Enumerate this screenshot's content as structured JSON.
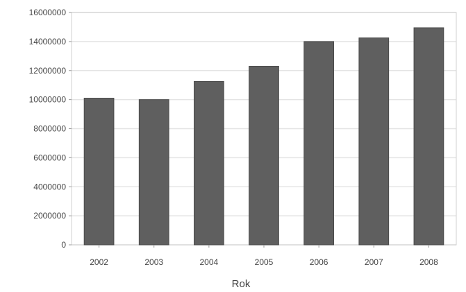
{
  "chart_data": {
    "type": "bar",
    "title": "",
    "xlabel": "Rok",
    "ylabel": "",
    "categories": [
      "2002",
      "2003",
      "2004",
      "2005",
      "2006",
      "2007",
      "2008"
    ],
    "values": [
      10100000,
      10000000,
      11250000,
      12300000,
      14000000,
      14250000,
      14950000
    ],
    "ylim": [
      0,
      16000000
    ],
    "yticks": [
      0,
      2000000,
      4000000,
      6000000,
      8000000,
      10000000,
      12000000,
      14000000,
      16000000
    ],
    "ytick_labels": [
      "0",
      "2000000",
      "4000000",
      "6000000",
      "8000000",
      "10000000",
      "12000000",
      "14000000",
      "16000000"
    ],
    "grid": "horizontal",
    "legend": "none",
    "colors": {
      "bar": "#5f5f5f",
      "bar_stroke": "#4a4a4a",
      "grid": "#e4e4e4",
      "frame": "#d0d0d0",
      "text": "#444444",
      "background": "#ffffff"
    }
  }
}
